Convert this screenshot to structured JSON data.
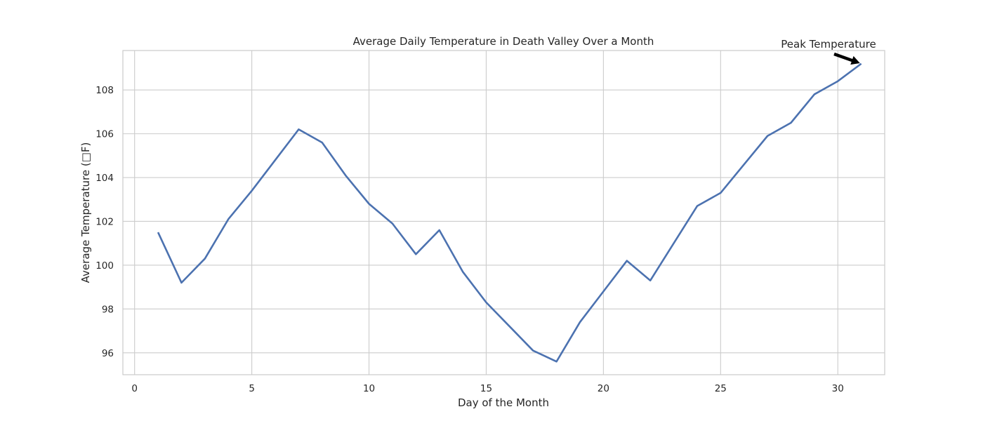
{
  "chart_data": {
    "type": "line",
    "title": "Average Daily Temperature in Death Valley Over a Month",
    "xlabel": "Day of the Month",
    "ylabel": "Average Temperature (□F)",
    "xlim": [
      -0.5,
      32.0
    ],
    "ylim": [
      95.0,
      109.8
    ],
    "xticks": [
      0,
      5,
      10,
      15,
      20,
      25,
      30
    ],
    "yticks": [
      96,
      98,
      100,
      102,
      104,
      106,
      108
    ],
    "grid": true,
    "series": [
      {
        "color": "#4c72b0",
        "x": [
          1,
          2,
          3,
          4,
          5,
          6,
          7,
          8,
          9,
          10,
          11,
          12,
          13,
          14,
          15,
          16,
          17,
          18,
          19,
          20,
          21,
          22,
          23,
          24,
          25,
          26,
          27,
          28,
          29,
          30,
          31
        ],
        "y": [
          101.5,
          99.2,
          100.3,
          102.1,
          103.4,
          104.8,
          106.2,
          105.6,
          104.1,
          102.8,
          101.9,
          100.5,
          101.6,
          99.7,
          98.3,
          97.2,
          96.1,
          95.6,
          97.4,
          98.8,
          100.2,
          99.3,
          101.0,
          102.7,
          103.3,
          104.6,
          105.9,
          106.5,
          107.8,
          108.4,
          109.2
        ]
      }
    ],
    "annotations": [
      {
        "text": "Peak Temperature",
        "x": 31,
        "y": 109.2,
        "arrow": true
      }
    ]
  }
}
